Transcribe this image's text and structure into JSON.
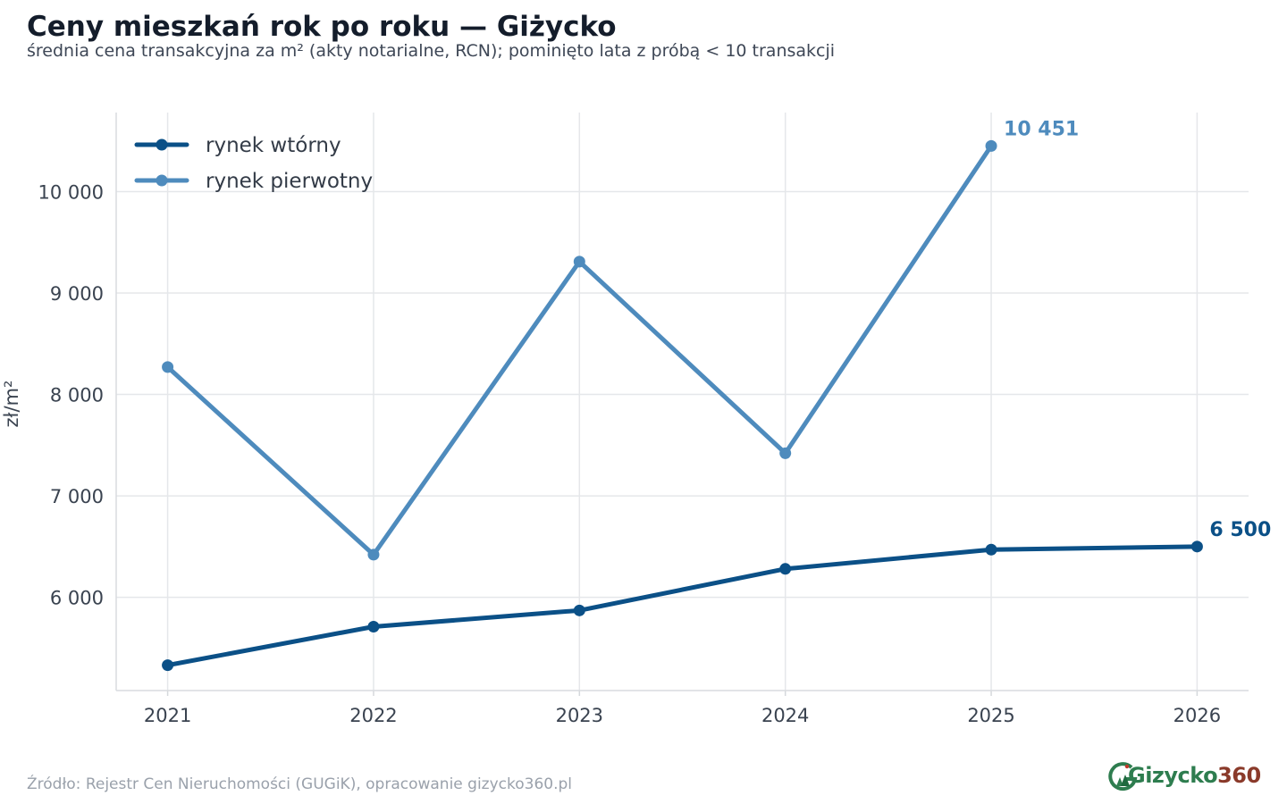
{
  "title": "Ceny mieszkań rok po roku — Giżycko",
  "subtitle": "średnia cena transakcyjna za m² (akty notarialne, RCN); pominięto lata z próbą < 10 transakcji",
  "source": "Źródło: Rejestr Cen Nieruchomości (GUGiK), opracowanie gizycko360.pl",
  "logo": {
    "main": "Gizycko",
    "num": "360"
  },
  "chart_data": {
    "type": "line",
    "x": [
      2021,
      2022,
      2023,
      2024,
      2025,
      2026
    ],
    "x_tick_labels": [
      "2021",
      "2022",
      "2023",
      "2024",
      "2025",
      "2026"
    ],
    "ylabel": "zł/m²",
    "y_ticks": [
      6000,
      7000,
      8000,
      9000,
      10000
    ],
    "y_tick_labels": [
      "6 000",
      "7 000",
      "8 000",
      "9 000",
      "10 000"
    ],
    "xlim": [
      2020.75,
      2026.25
    ],
    "ylim": [
      5080,
      10780
    ],
    "grid": true,
    "legend": "top-left",
    "series": [
      {
        "name": "rynek wtórny",
        "color": "#0b5087",
        "values": [
          5330,
          5710,
          5870,
          6280,
          6470,
          6500
        ],
        "end_label": "6 500"
      },
      {
        "name": "rynek pierwotny",
        "color": "#4e8bbd",
        "values": [
          8270,
          6420,
          9310,
          7420,
          10451,
          null
        ],
        "end_label": "10 451"
      }
    ]
  }
}
